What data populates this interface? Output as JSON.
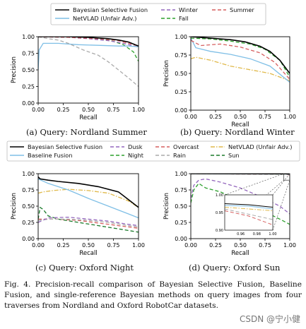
{
  "figure": {
    "caption": "Fig. 4.  Precision-recall comparison of Bayesian Selective Fusion, Baseline Fusion, and single-reference Bayesian methods on query images from four traverses from Nordland and Oxford RobotCar datasets.",
    "watermark": "CSDN @宁小健",
    "legend_top": [
      {
        "label": "Bayesian Selective Fusion",
        "color": "#000000",
        "dash": "solid"
      },
      {
        "label": "NetVLAD (Unfair Adv.)",
        "color": "#7fbfe6",
        "dash": "solid"
      },
      {
        "label": "Winter",
        "color": "#9467bd",
        "dash": "dashed"
      },
      {
        "label": "Fall",
        "color": "#2ca02c",
        "dash": "dashed"
      },
      {
        "label": "Summer",
        "color": "#d65f5f",
        "dash": "dashed"
      }
    ],
    "legend_mid": [
      {
        "label": "Bayesian Selective Fusion",
        "color": "#000000",
        "dash": "solid"
      },
      {
        "label": "Baseline Fusion",
        "color": "#7fbfe6",
        "dash": "solid"
      },
      {
        "label": "Dusk",
        "color": "#9467bd",
        "dash": "dashed"
      },
      {
        "label": "Night",
        "color": "#2ca02c",
        "dash": "dashed"
      },
      {
        "label": "Overcast",
        "color": "#d65f5f",
        "dash": "dashed"
      },
      {
        "label": "Rain",
        "color": "#aaaaaa",
        "dash": "dashed"
      },
      {
        "label": "NetVLAD (Unfair Adv.)",
        "color": "#e0b94a",
        "dash": "dashdot"
      },
      {
        "label": "Sun",
        "color": "#1a7a2a",
        "dash": "dashed"
      }
    ]
  },
  "chart_data": [
    {
      "type": "line",
      "caption": "(a) Query: Nordland Summer",
      "xlabel": "Recall",
      "ylabel": "Precision",
      "xlim": [
        0,
        1
      ],
      "ylim": [
        0,
        1
      ],
      "xticks": [
        "0.00",
        "0.25",
        "0.50",
        "0.75",
        "1.00"
      ],
      "yticks": [
        "0.00",
        "0.25",
        "0.50",
        "0.75",
        "1.00"
      ],
      "series": [
        {
          "name": "Fall",
          "color": "#2ca02c",
          "dash": "dashed",
          "x": [
            0,
            0.2,
            0.4,
            0.6,
            0.75,
            0.85,
            0.95,
            1.0
          ],
          "y": [
            1.0,
            1.0,
            0.99,
            0.97,
            0.93,
            0.88,
            0.77,
            0.63
          ]
        },
        {
          "name": "Winter",
          "color": "#9467bd",
          "dash": "dashed",
          "x": [
            0,
            0.3,
            0.5,
            0.7,
            0.85,
            1.0
          ],
          "y": [
            1.0,
            0.99,
            0.97,
            0.94,
            0.9,
            0.84
          ]
        },
        {
          "name": "NetVLAD (Unfair Adv.)",
          "color": "#7fbfe6",
          "dash": "solid",
          "x": [
            0,
            0.01,
            0.05,
            0.2,
            0.4,
            0.6,
            0.8,
            0.9,
            1.0
          ],
          "y": [
            0.5,
            0.8,
            0.9,
            0.9,
            0.88,
            0.87,
            0.86,
            0.86,
            0.85
          ]
        },
        {
          "name": "Rain",
          "color": "#aaaaaa",
          "dash": "dashed",
          "x": [
            0,
            0.1,
            0.2,
            0.3,
            0.45,
            0.6,
            0.7,
            0.8,
            0.9,
            1.0
          ],
          "y": [
            1.0,
            0.97,
            0.95,
            0.9,
            0.8,
            0.72,
            0.62,
            0.5,
            0.38,
            0.25
          ]
        },
        {
          "name": "Summer",
          "color": "#d65f5f",
          "dash": "dashed",
          "x": [
            0,
            0.3,
            0.6,
            0.8,
            0.9,
            1.0
          ],
          "y": [
            1.0,
            0.99,
            0.97,
            0.94,
            0.9,
            0.86
          ]
        },
        {
          "name": "Bayesian Selective Fusion",
          "color": "#000000",
          "dash": "solid",
          "x": [
            0,
            0.3,
            0.5,
            0.7,
            0.8,
            0.9,
            1.0
          ],
          "y": [
            1.0,
            1.0,
            0.99,
            0.97,
            0.95,
            0.92,
            0.86
          ]
        }
      ]
    },
    {
      "type": "line",
      "caption": "(b) Query: Nordland Winter",
      "xlabel": "Recall",
      "ylabel": "Precision",
      "xlim": [
        0,
        1
      ],
      "ylim": [
        0,
        1
      ],
      "xticks": [
        "0.00",
        "0.25",
        "0.50",
        "0.75",
        "1.00"
      ],
      "yticks": [
        "0.00",
        "0.25",
        "0.50",
        "0.75",
        "1.00"
      ],
      "series": [
        {
          "name": "NetVLAD (Unfair Adv.)",
          "color": "#e0b94a",
          "dash": "dashdot",
          "x": [
            0,
            0.05,
            0.2,
            0.4,
            0.6,
            0.8,
            1.0
          ],
          "y": [
            0.7,
            0.72,
            0.68,
            0.6,
            0.55,
            0.5,
            0.4
          ]
        },
        {
          "name": "Baseline Fusion",
          "color": "#7fbfe6",
          "dash": "solid",
          "x": [
            0,
            0.05,
            0.2,
            0.4,
            0.6,
            0.8,
            1.0
          ],
          "y": [
            0.98,
            0.85,
            0.8,
            0.76,
            0.7,
            0.6,
            0.38
          ]
        },
        {
          "name": "Summer",
          "color": "#d65f5f",
          "dash": "dashed",
          "x": [
            0,
            0.1,
            0.3,
            0.5,
            0.7,
            0.85,
            1.0
          ],
          "y": [
            0.95,
            0.88,
            0.9,
            0.86,
            0.78,
            0.65,
            0.42
          ]
        },
        {
          "name": "Fall",
          "color": "#2ca02c",
          "dash": "dashed",
          "x": [
            0,
            0.2,
            0.4,
            0.6,
            0.75,
            0.9,
            1.0
          ],
          "y": [
            0.98,
            0.97,
            0.94,
            0.9,
            0.83,
            0.68,
            0.45
          ]
        },
        {
          "name": "Bayesian Selective Fusion",
          "color": "#000000",
          "dash": "solid",
          "x": [
            0,
            0.2,
            0.4,
            0.55,
            0.7,
            0.8,
            0.9,
            1.0
          ],
          "y": [
            1.0,
            0.98,
            0.96,
            0.93,
            0.87,
            0.8,
            0.68,
            0.5
          ]
        }
      ]
    },
    {
      "type": "line",
      "caption": "(c) Query: Oxford Night",
      "xlabel": "Recall",
      "ylabel": "Precision",
      "xlim": [
        0,
        1
      ],
      "ylim": [
        0,
        1
      ],
      "xticks": [
        "0.00",
        "0.25",
        "0.50",
        "0.75",
        "1.00"
      ],
      "yticks": [
        "0.00",
        "0.25",
        "0.50",
        "0.75",
        "1.00"
      ],
      "series": [
        {
          "name": "Sun",
          "color": "#1a7a2a",
          "dash": "dashed",
          "x": [
            0,
            0.02,
            0.05,
            0.1,
            0.2,
            0.4,
            0.6,
            0.8,
            1.0
          ],
          "y": [
            0.3,
            0.48,
            0.45,
            0.35,
            0.3,
            0.25,
            0.2,
            0.15,
            0.1
          ]
        },
        {
          "name": "Overcast",
          "color": "#d65f5f",
          "dash": "dashed",
          "x": [
            0,
            0.05,
            0.2,
            0.4,
            0.6,
            0.8,
            1.0
          ],
          "y": [
            0.3,
            0.3,
            0.3,
            0.28,
            0.24,
            0.2,
            0.16
          ]
        },
        {
          "name": "Rain",
          "color": "#aaaaaa",
          "dash": "dashed",
          "x": [
            0,
            0.1,
            0.3,
            0.5,
            0.7,
            0.9,
            1.0
          ],
          "y": [
            0.28,
            0.3,
            0.3,
            0.28,
            0.25,
            0.2,
            0.18
          ]
        },
        {
          "name": "Dusk",
          "color": "#9467bd",
          "dash": "dashed",
          "x": [
            0,
            0.1,
            0.3,
            0.5,
            0.7,
            0.9,
            1.0
          ],
          "y": [
            0.25,
            0.32,
            0.33,
            0.3,
            0.27,
            0.22,
            0.2
          ]
        },
        {
          "name": "NetVLAD (Unfair Adv.)",
          "color": "#e0b94a",
          "dash": "dashdot",
          "x": [
            0,
            0.05,
            0.15,
            0.3,
            0.5,
            0.7,
            0.9,
            1.0
          ],
          "y": [
            0.7,
            0.72,
            0.74,
            0.76,
            0.74,
            0.7,
            0.58,
            0.48
          ]
        },
        {
          "name": "Baseline Fusion",
          "color": "#7fbfe6",
          "dash": "solid",
          "x": [
            0,
            0.1,
            0.3,
            0.5,
            0.7,
            0.9,
            1.0
          ],
          "y": [
            0.92,
            0.85,
            0.75,
            0.62,
            0.5,
            0.38,
            0.32
          ]
        },
        {
          "name": "Bayesian Selective Fusion",
          "color": "#000000",
          "dash": "solid",
          "x": [
            0,
            0.02,
            0.1,
            0.2,
            0.4,
            0.6,
            0.8,
            0.9,
            1.0
          ],
          "y": [
            0.95,
            0.92,
            0.9,
            0.88,
            0.85,
            0.8,
            0.72,
            0.6,
            0.48
          ]
        }
      ]
    },
    {
      "type": "line",
      "caption": "(d) Query: Oxford Sun",
      "xlabel": "Recall",
      "ylabel": "Precision",
      "xlim": [
        0,
        1
      ],
      "ylim": [
        0,
        1
      ],
      "xticks": [
        "0.00",
        "0.25",
        "0.50",
        "0.75",
        "1.00"
      ],
      "yticks": [
        "0.00",
        "0.25",
        "0.50",
        "0.75",
        "1.00"
      ],
      "inset": {
        "xlim": [
          0.94,
          1.0
        ],
        "ylim": [
          0.9,
          1.0
        ],
        "xticks": [
          "0.96",
          "0.98",
          "1.00"
        ],
        "yticks": [
          "0.90",
          "0.95",
          "1.00"
        ]
      },
      "series": [
        {
          "name": "Overcast",
          "color": "#d65f5f",
          "dash": "dashed",
          "x": [
            0,
            0.95,
            1.0
          ],
          "y": [
            1.0,
            0.99,
            0.98
          ]
        },
        {
          "name": "Rain",
          "color": "#aaaaaa",
          "dash": "dashed",
          "x": [
            0,
            0.95,
            1.0
          ],
          "y": [
            1.0,
            0.99,
            0.985
          ]
        },
        {
          "name": "NetVLAD (Unfair Adv.)",
          "color": "#e0b94a",
          "dash": "dashdot",
          "x": [
            0,
            0.95,
            1.0
          ],
          "y": [
            1.0,
            0.995,
            0.99
          ]
        },
        {
          "name": "Baseline Fusion",
          "color": "#7fbfe6",
          "dash": "solid",
          "x": [
            0,
            0.95,
            1.0
          ],
          "y": [
            1.0,
            0.995,
            0.99
          ]
        },
        {
          "name": "Dusk",
          "color": "#9467bd",
          "dash": "dashed",
          "x": [
            0,
            0.03,
            0.08,
            0.15,
            0.3,
            0.5,
            0.7,
            0.9,
            1.0
          ],
          "y": [
            0.62,
            0.82,
            0.9,
            0.92,
            0.87,
            0.78,
            0.65,
            0.5,
            0.38
          ]
        },
        {
          "name": "Night",
          "color": "#2ca02c",
          "dash": "dashed",
          "x": [
            0,
            0.03,
            0.08,
            0.15,
            0.3,
            0.5,
            0.7,
            0.9,
            1.0
          ],
          "y": [
            0.55,
            0.75,
            0.85,
            0.78,
            0.72,
            0.58,
            0.45,
            0.3,
            0.22
          ]
        },
        {
          "name": "Bayesian Selective Fusion",
          "color": "#000000",
          "dash": "solid",
          "x": [
            0,
            0.95,
            1.0
          ],
          "y": [
            1.0,
            0.998,
            0.995
          ]
        }
      ]
    }
  ]
}
